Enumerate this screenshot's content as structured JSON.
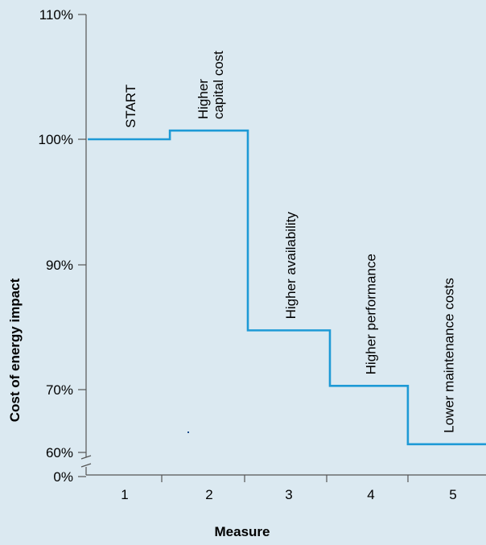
{
  "chart_data": {
    "type": "line",
    "step": true,
    "title": "",
    "xlabel": "Measure",
    "ylabel": "Cost of energy impact",
    "categories": [
      "1",
      "2",
      "3",
      "4",
      "5"
    ],
    "yticks": [
      {
        "value": 110,
        "label": "110%"
      },
      {
        "value": 100,
        "label": "100%"
      },
      {
        "value": 90,
        "label": "90%"
      },
      {
        "value": 70,
        "label": "70%"
      },
      {
        "value": 60,
        "label": "60%"
      },
      {
        "value": 0,
        "label": "0%"
      }
    ],
    "axis_break": "between 0% and 60%",
    "series": [
      {
        "color": "#1e9ad6",
        "steps": [
          {
            "label_lines": [
              "START"
            ],
            "x_from": 0.55,
            "x_to": 1.55,
            "y": 100
          },
          {
            "label_lines": [
              "Higher",
              "capital cost"
            ],
            "x_from": 1.55,
            "x_to": 2.5,
            "y": 100.7
          },
          {
            "label_lines": [
              "Higher availability"
            ],
            "x_from": 2.5,
            "x_to": 3.5,
            "y": 79.5
          },
          {
            "label_lines": [
              "Higher performance"
            ],
            "x_from": 3.5,
            "x_to": 4.45,
            "y": 70.6
          },
          {
            "label_lines": [
              "Lower maintenance costs"
            ],
            "x_from": 4.45,
            "x_to": 5.45,
            "y": 61.3
          }
        ]
      }
    ],
    "grid": false,
    "legend": "none",
    "colors": {
      "background": "#dbe9f1",
      "axis": "#555555",
      "line": "#1e9ad6"
    }
  }
}
